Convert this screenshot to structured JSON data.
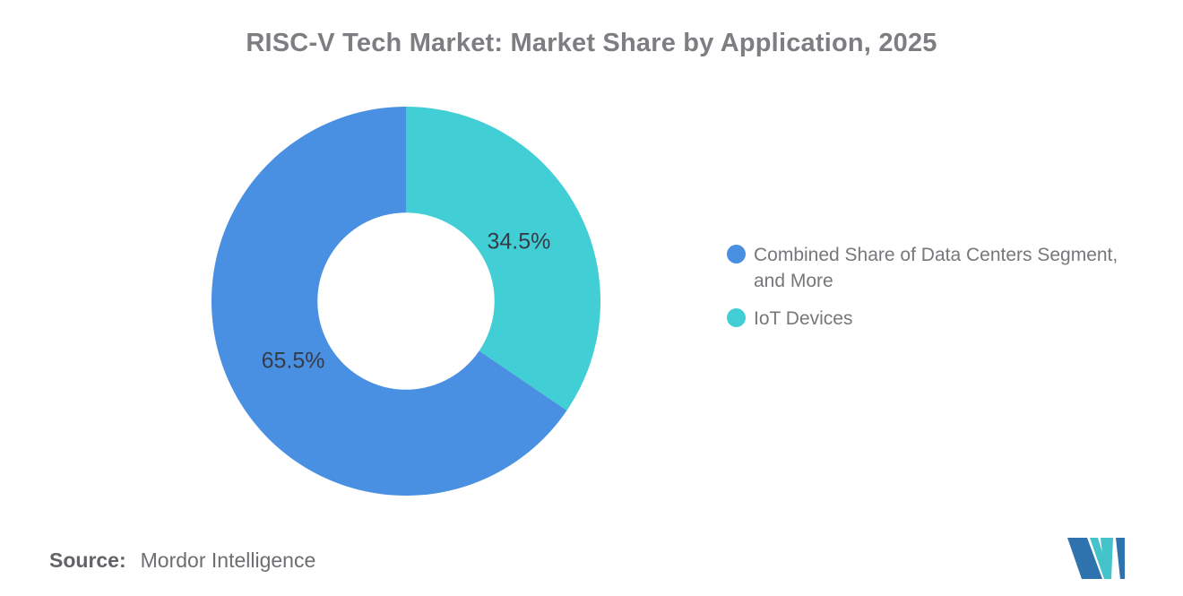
{
  "title": "RISC-V Tech Market: Market Share by Application, 2025",
  "chart_data": {
    "type": "pie",
    "subtype": "donut",
    "title": "RISC-V Tech Market: Market Share by Application, 2025",
    "unit": "%",
    "start_angle_deg": 0,
    "clockwise": true,
    "inner_radius_ratio": 0.455,
    "data_label_color": "#363c47",
    "legend_position": "right",
    "slices": [
      {
        "label": "IoT Devices",
        "value": 34.5,
        "data_label": "34.5%",
        "color": "#41ced5"
      },
      {
        "label": "Combined Share of Data Centers Segment, and More",
        "value": 65.5,
        "data_label": "65.5%",
        "color": "#4a90e2"
      }
    ]
  },
  "legend": {
    "items": [
      {
        "label": "Combined Share of Data Centers Segment, and More",
        "lines": [
          "Combined Share of Data Centers Segment,",
          "and More"
        ],
        "color": "#4a90e2"
      },
      {
        "label": "IoT Devices",
        "lines": [
          "IoT Devices"
        ],
        "color": "#41ced5"
      }
    ]
  },
  "source": {
    "prefix": "Source:",
    "text": "Mordor Intelligence"
  },
  "logo": {
    "name": "mordor-intelligence-logo",
    "colors": {
      "blue": "#2e72ae",
      "teal": "#44c3cb"
    }
  }
}
